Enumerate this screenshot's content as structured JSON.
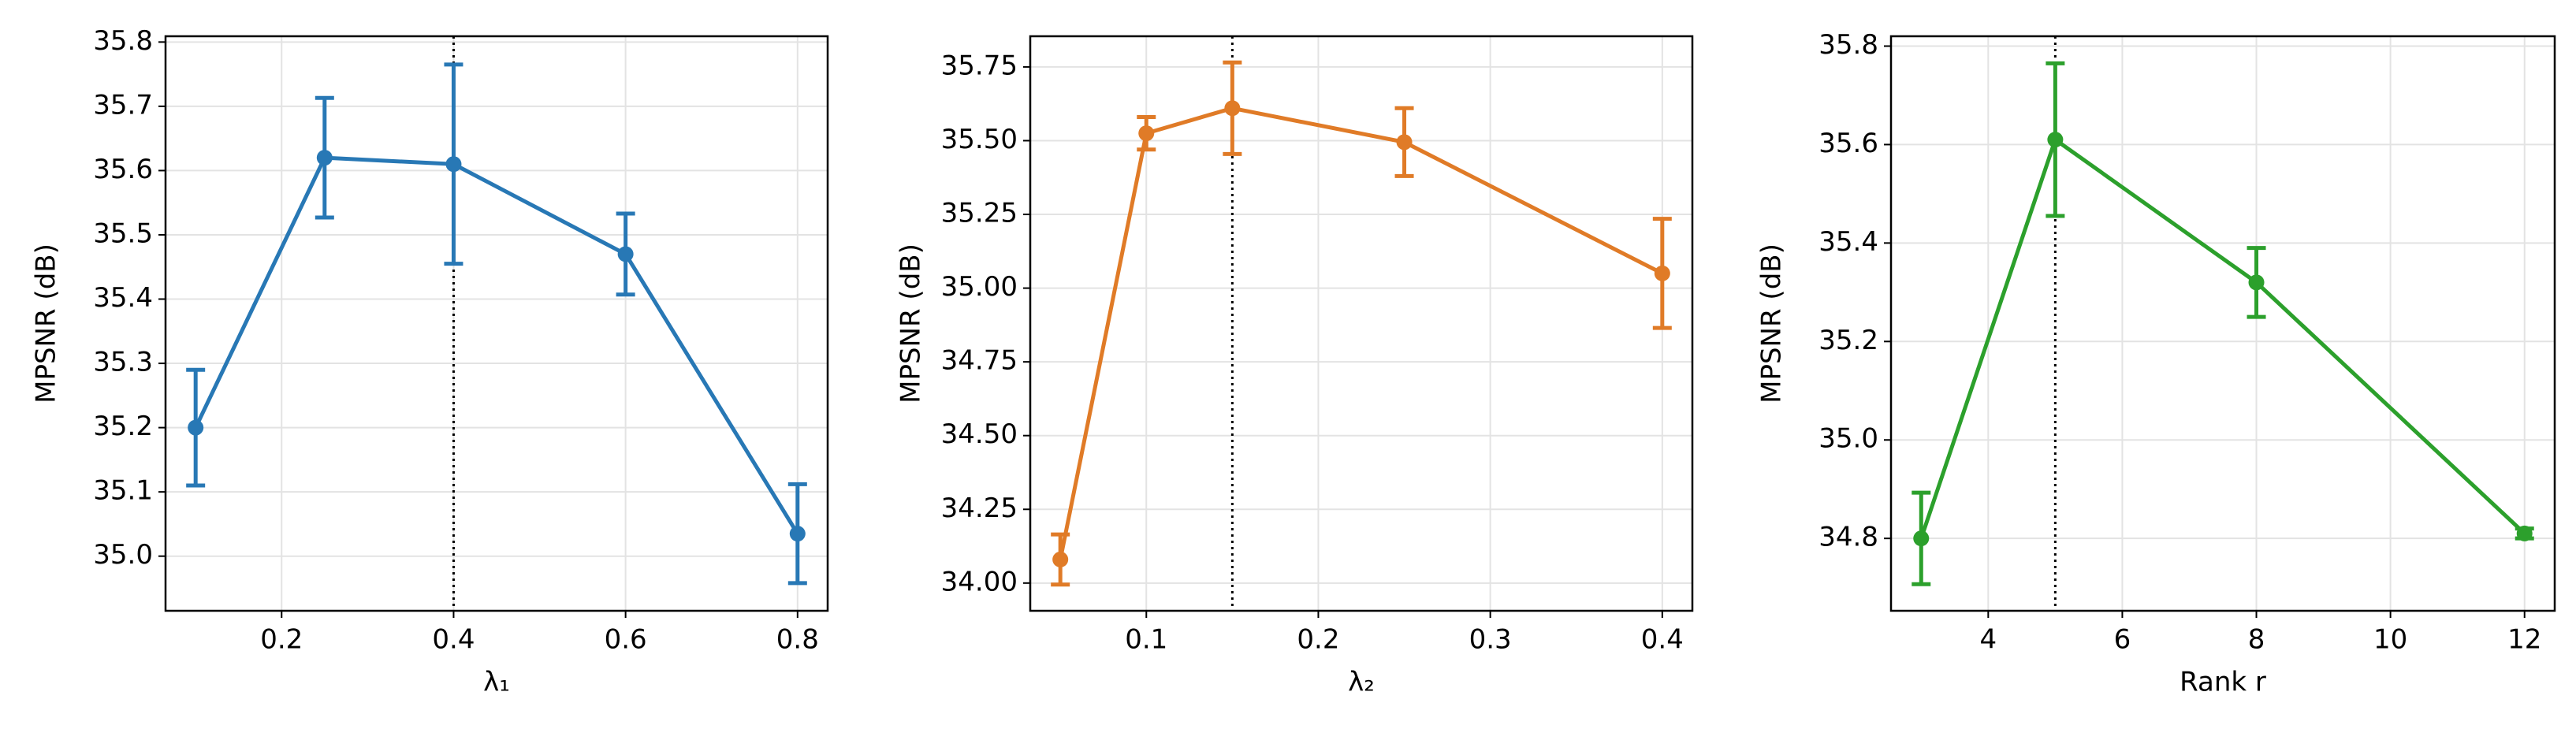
{
  "chart_data": [
    {
      "type": "line",
      "xlabel": "λ₁",
      "ylabel": "MPSNR (dB)",
      "color": "#2878b5",
      "x": [
        0.1,
        0.25,
        0.4,
        0.6,
        0.8
      ],
      "values": [
        35.2,
        35.62,
        35.61,
        35.47,
        35.035
      ],
      "errors": [
        0.09,
        0.093,
        0.155,
        0.063,
        0.077
      ],
      "vline": 0.4,
      "xlim": [
        0.065,
        0.835
      ],
      "ylim": [
        34.915,
        35.809
      ],
      "xticks": [
        0.2,
        0.4,
        0.6,
        0.8
      ],
      "yticks": [
        {
          "value": 35.0,
          "label": "35.0"
        },
        {
          "value": 35.1,
          "label": "35.1"
        },
        {
          "value": 35.2,
          "label": "35.2"
        },
        {
          "value": 35.3,
          "label": "35.3"
        },
        {
          "value": 35.4,
          "label": "35.4"
        },
        {
          "value": 35.5,
          "label": "35.5"
        },
        {
          "value": 35.6,
          "label": "35.6"
        },
        {
          "value": 35.7,
          "label": "35.7"
        },
        {
          "value": 35.8,
          "label": "35.8"
        }
      ],
      "grid": true
    },
    {
      "type": "line",
      "xlabel": "λ₂",
      "ylabel": "MPSNR (dB)",
      "color": "#e07b27",
      "x": [
        0.05,
        0.1,
        0.15,
        0.25,
        0.4
      ],
      "values": [
        34.08,
        35.525,
        35.61,
        35.495,
        35.05
      ],
      "errors": [
        0.085,
        0.055,
        0.155,
        0.115,
        0.185
      ],
      "vline": 0.15,
      "xlim": [
        0.0325,
        0.4175
      ],
      "ylim": [
        33.906,
        35.854
      ],
      "xticks": [
        0.1,
        0.2,
        0.3,
        0.4
      ],
      "yticks": [
        {
          "value": 34.0,
          "label": "34.00"
        },
        {
          "value": 34.25,
          "label": "34.25"
        },
        {
          "value": 34.5,
          "label": "34.50"
        },
        {
          "value": 34.75,
          "label": "34.75"
        },
        {
          "value": 35.0,
          "label": "35.00"
        },
        {
          "value": 35.25,
          "label": "35.25"
        },
        {
          "value": 35.5,
          "label": "35.50"
        },
        {
          "value": 35.75,
          "label": "35.75"
        }
      ],
      "grid": true
    },
    {
      "type": "line",
      "xlabel": "Rank r",
      "ylabel": "MPSNR (dB)",
      "color": "#2ca02c",
      "x": [
        3,
        5,
        8,
        12
      ],
      "values": [
        34.8,
        35.61,
        35.32,
        34.81
      ],
      "errors": [
        0.093,
        0.155,
        0.07,
        0.01
      ],
      "vline": 5,
      "xlim": [
        2.55,
        12.45
      ],
      "ylim": [
        34.653,
        35.82
      ],
      "xticks": [
        4,
        6,
        8,
        10,
        12
      ],
      "yticks": [
        {
          "value": 34.8,
          "label": "34.8"
        },
        {
          "value": 35.0,
          "label": "35.0"
        },
        {
          "value": 35.2,
          "label": "35.2"
        },
        {
          "value": 35.4,
          "label": "35.4"
        },
        {
          "value": 35.6,
          "label": "35.6"
        },
        {
          "value": 35.8,
          "label": "35.8"
        }
      ],
      "grid": true
    }
  ]
}
